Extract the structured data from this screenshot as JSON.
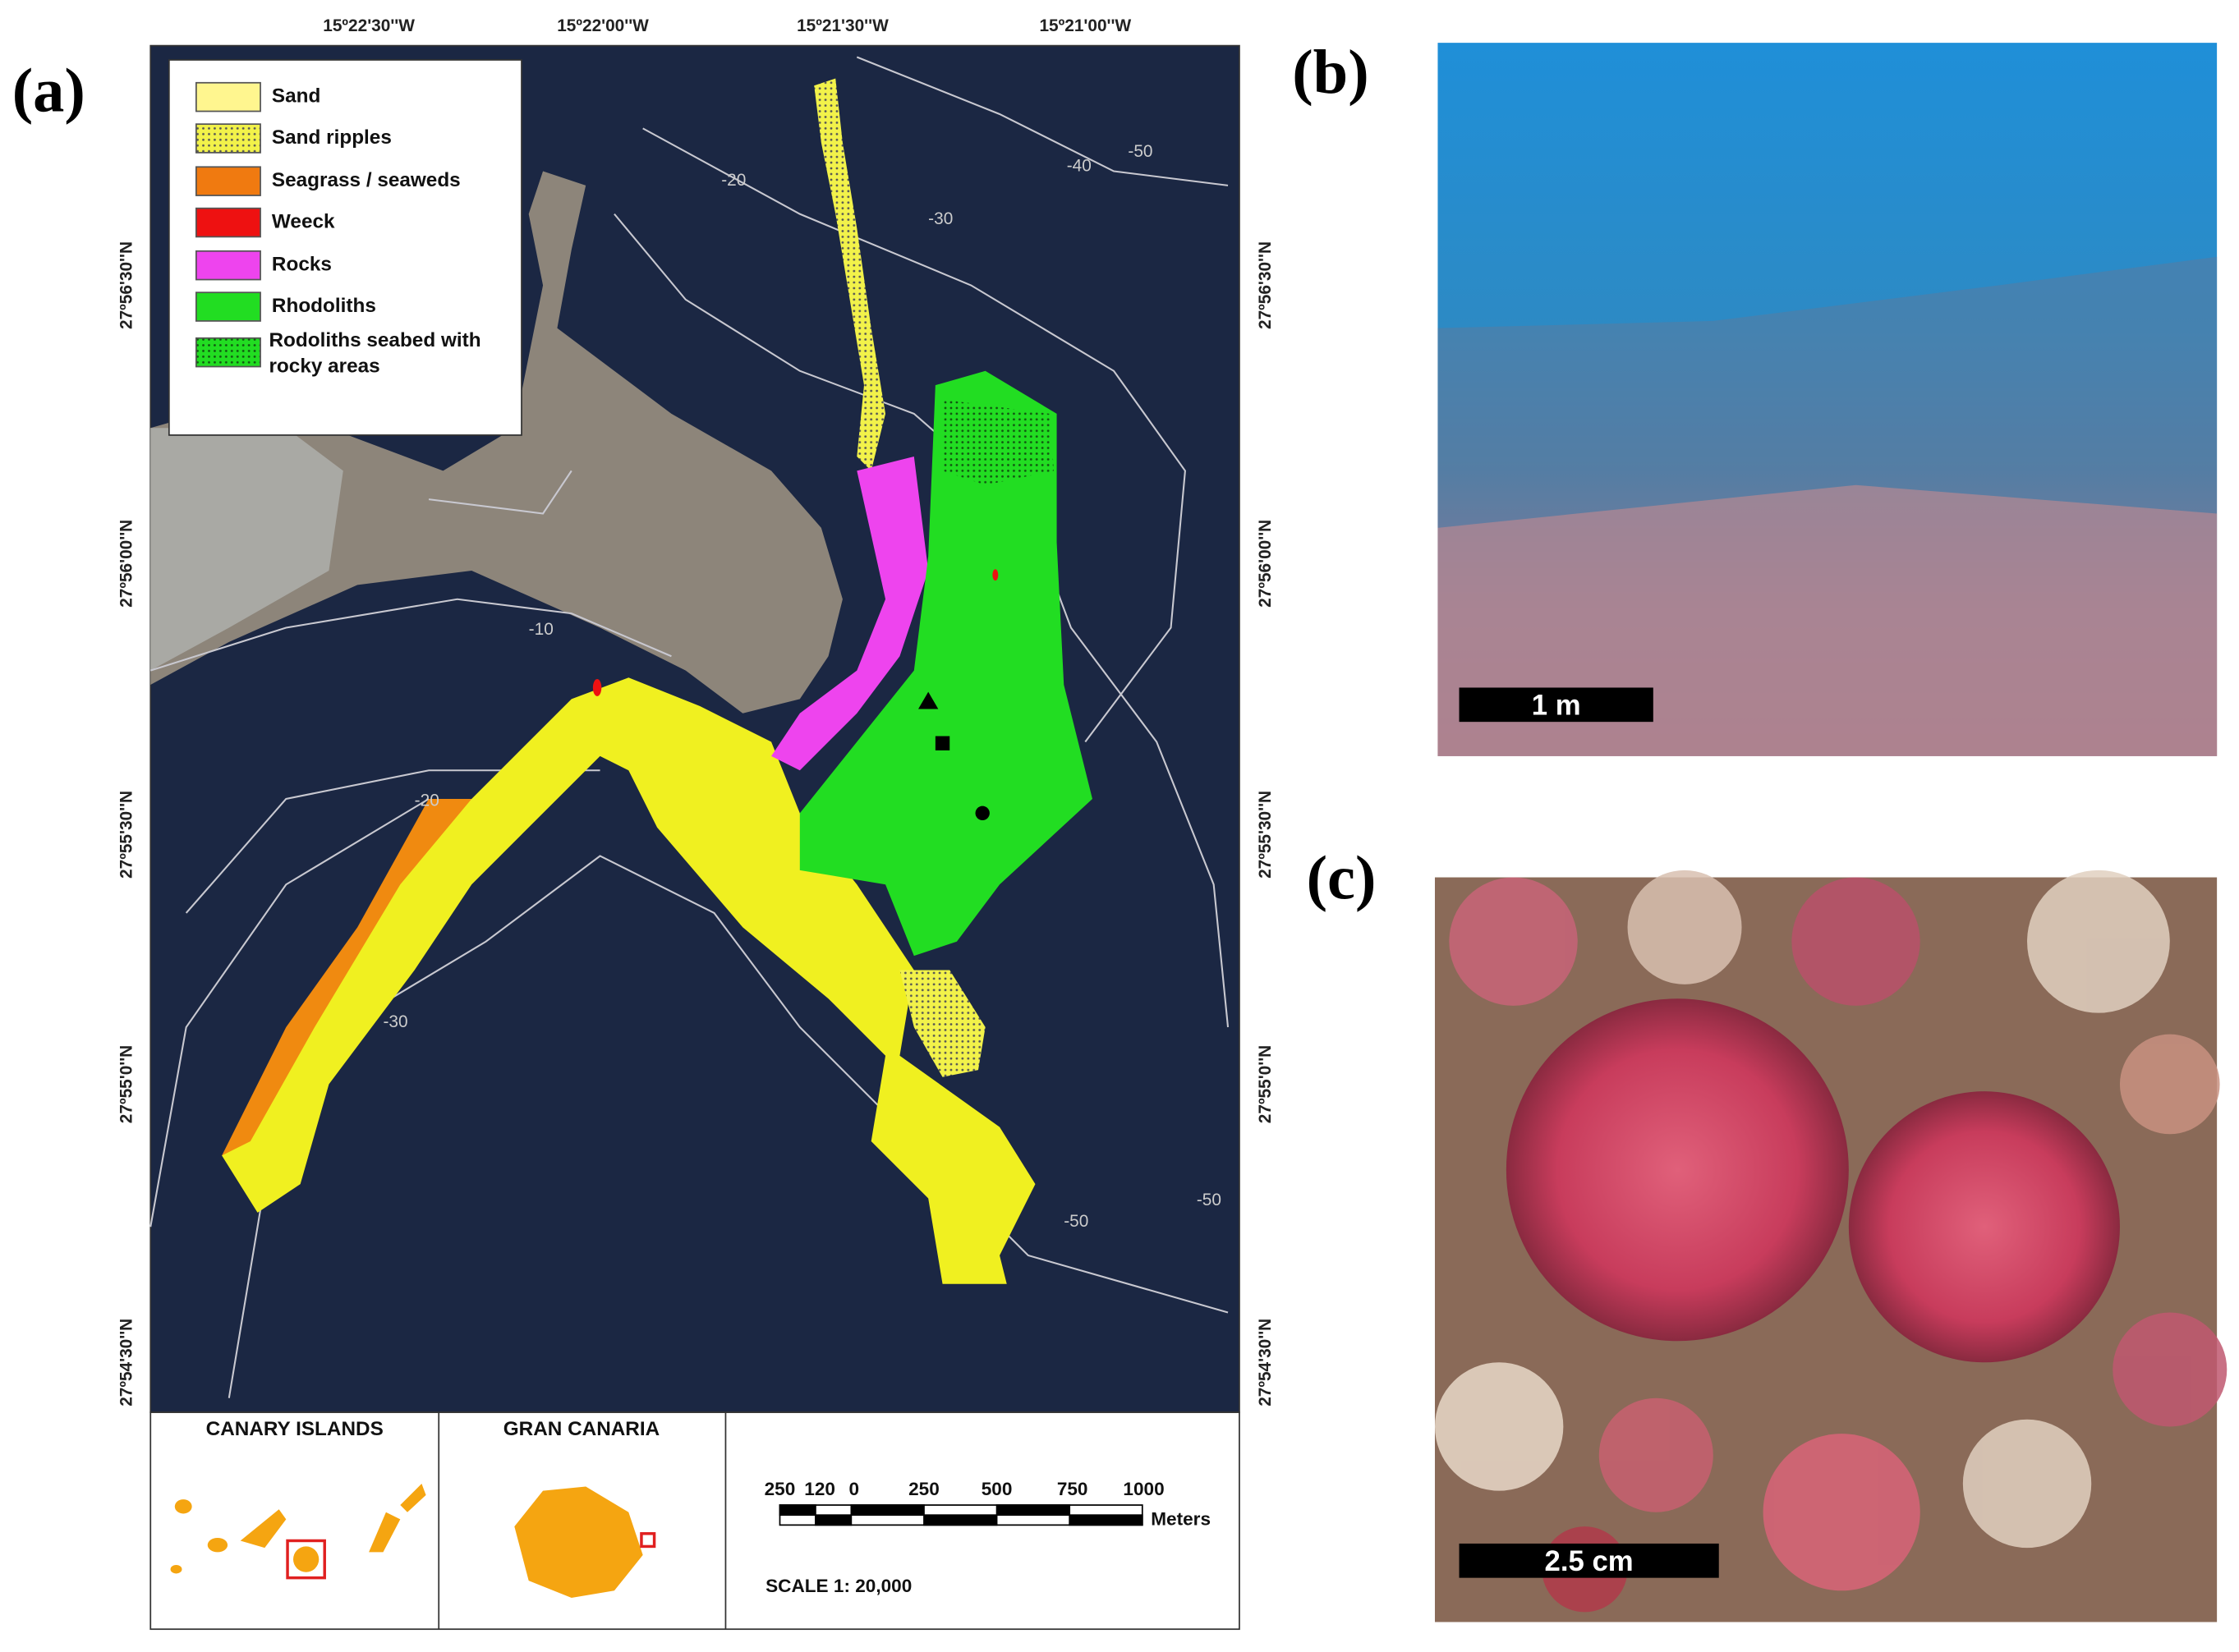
{
  "panels": {
    "a": "(a)",
    "b": "(b)",
    "c": "(c)"
  },
  "map": {
    "longitude_labels": [
      "15º22'30''W",
      "15º22'00''W",
      "15º21'30''W",
      "15º21'00''W"
    ],
    "latitude_labels": [
      "27º56'30''N",
      "27º56'00''N",
      "27º55'30''N",
      "27º55'0''N",
      "27º54'30''N"
    ],
    "legend": [
      {
        "label": "Sand",
        "color": "#fff68f"
      },
      {
        "label": "Sand ripples",
        "color": "#f2f24a"
      },
      {
        "label": "Seagrass / seaweds",
        "color": "#f07a10"
      },
      {
        "label": "Weeck",
        "color": "#ee1111"
      },
      {
        "label": "Rocks",
        "color": "#ee44ee"
      },
      {
        "label": "Rhodoliths",
        "color": "#22dd22"
      },
      {
        "label": "Rodoliths seabed with rocky areas",
        "color": "#22dd22"
      }
    ],
    "contour_labels": [
      "-20",
      "-40",
      "-50",
      "-30",
      "-10",
      "-20",
      "-30",
      "-50",
      "-50"
    ]
  },
  "insets": {
    "canary_islands": "CANARY ISLANDS",
    "gran_canaria": "GRAN CANARIA",
    "scale_bar": {
      "labels": [
        "250",
        "120",
        "0",
        "250",
        "500",
        "750",
        "1000"
      ],
      "unit": "Meters",
      "scale": "SCALE  1: 20,000"
    }
  },
  "photos": {
    "b_scale": "1 m",
    "c_scale": "2.5 cm"
  }
}
